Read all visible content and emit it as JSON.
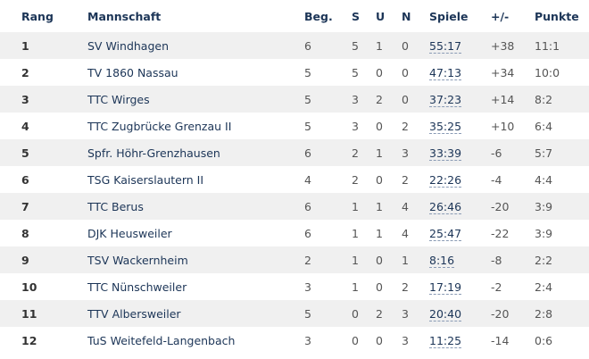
{
  "headers": [
    "Rang",
    "Mannschaft",
    "Beg.",
    "S",
    "U",
    "N",
    "Spiele",
    "+/-",
    "Punkte"
  ],
  "rows": [
    [
      "1",
      "SV Windhagen",
      "6",
      "5",
      "1",
      "0",
      "55:17",
      "+38",
      "11:1"
    ],
    [
      "2",
      "TV 1860 Nassau",
      "5",
      "5",
      "0",
      "0",
      "47:13",
      "+34",
      "10:0"
    ],
    [
      "3",
      "TTC Wirges",
      "5",
      "3",
      "2",
      "0",
      "37:23",
      "+14",
      "8:2"
    ],
    [
      "4",
      "TTC Zugbrücke Grenzau II",
      "5",
      "3",
      "0",
      "2",
      "35:25",
      "+10",
      "6:4"
    ],
    [
      "5",
      "Spfr. Höhr-Grenzhausen",
      "6",
      "2",
      "1",
      "3",
      "33:39",
      "-6",
      "5:7"
    ],
    [
      "6",
      "TSG Kaiserslautern II",
      "4",
      "2",
      "0",
      "2",
      "22:26",
      "-4",
      "4:4"
    ],
    [
      "7",
      "TTC Berus",
      "6",
      "1",
      "1",
      "4",
      "26:46",
      "-20",
      "3:9"
    ],
    [
      "8",
      "DJK Heusweiler",
      "6",
      "1",
      "1",
      "4",
      "25:47",
      "-22",
      "3:9"
    ],
    [
      "9",
      "TSV Wackernheim",
      "2",
      "1",
      "0",
      "1",
      "8:16",
      "-8",
      "2:2"
    ],
    [
      "10",
      "TTC Nünschweiler",
      "3",
      "1",
      "0",
      "2",
      "17:19",
      "-2",
      "2:4"
    ],
    [
      "11",
      "TTV Albersweiler",
      "5",
      "0",
      "2",
      "3",
      "20:40",
      "-20",
      "2:8"
    ],
    [
      "12",
      "TuS Weitefeld-Langenbach",
      "3",
      "0",
      "0",
      "3",
      "11:25",
      "-14",
      "0:6"
    ]
  ]
}
